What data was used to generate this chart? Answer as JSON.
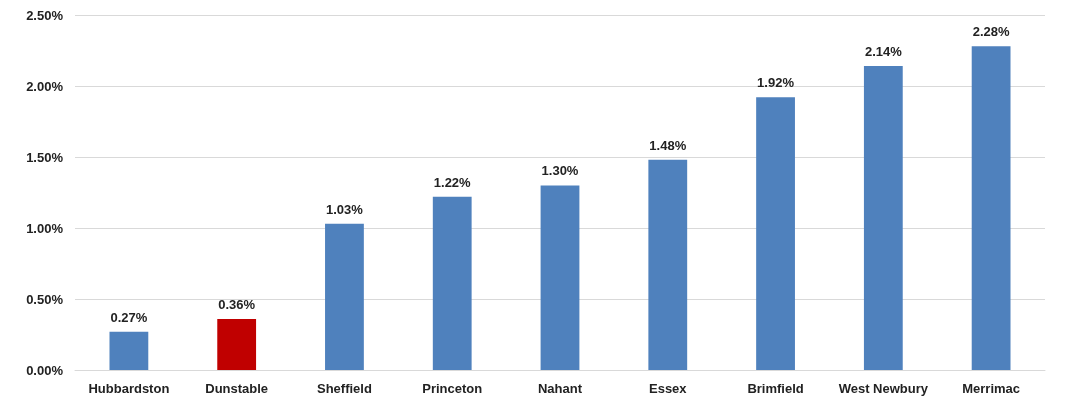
{
  "chart_data": {
    "type": "bar",
    "categories": [
      "Hubbardston",
      "Dunstable",
      "Sheffield",
      "Princeton",
      "Nahant",
      "Essex",
      "Brimfield",
      "West Newbury",
      "Merrimac"
    ],
    "values": [
      0.27,
      0.36,
      1.03,
      1.22,
      1.3,
      1.48,
      1.92,
      2.14,
      2.28
    ],
    "colors": [
      "#4f81bd",
      "#c00000",
      "#4f81bd",
      "#4f81bd",
      "#4f81bd",
      "#4f81bd",
      "#4f81bd",
      "#4f81bd",
      "#4f81bd"
    ],
    "value_labels": [
      "0.27%",
      "0.36%",
      "1.03%",
      "1.22%",
      "1.30%",
      "1.48%",
      "1.92%",
      "2.14%",
      "2.28%"
    ],
    "ylim": [
      0,
      2.5
    ],
    "yticks": [
      {
        "value": 0,
        "label": "0.00%"
      },
      {
        "value": 0.5,
        "label": "0.50%"
      },
      {
        "value": 1,
        "label": "1.00%"
      },
      {
        "value": 1.5,
        "label": "1.50%"
      },
      {
        "value": 2,
        "label": "2.00%"
      },
      {
        "value": 2.5,
        "label": "2.50%"
      }
    ],
    "grid": "y"
  }
}
